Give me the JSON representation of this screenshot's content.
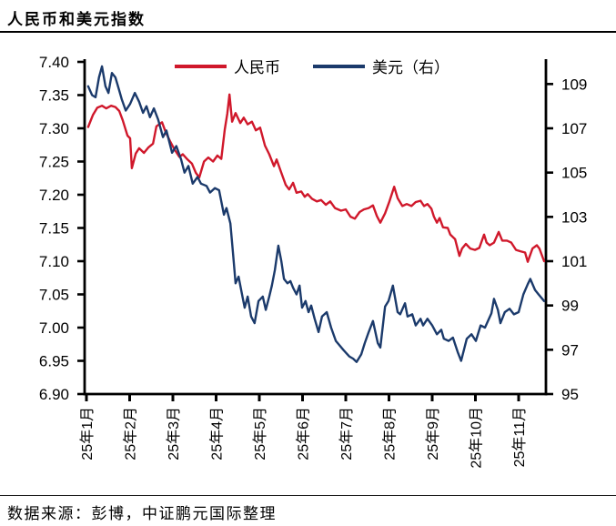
{
  "header": {
    "title": "人民币和美元指数"
  },
  "footer": {
    "source": "数据来源：彭博，中证鹏元国际整理"
  },
  "colors": {
    "cny_line": "#D0182B",
    "usd_line": "#1B3A6B",
    "axis": "#000000",
    "text": "#000000"
  },
  "chart_data": {
    "type": "line",
    "title": "人民币和美元指数",
    "legend_position": "top",
    "grid": false,
    "x_axis": {
      "unit": "months since 2025-01",
      "tick_labels": [
        "25年1月",
        "25年2月",
        "25年3月",
        "25年4月",
        "25年5月",
        "25年6月",
        "25年7月",
        "25年8月",
        "25年9月",
        "25年10月",
        "25年11月"
      ]
    },
    "y_left": {
      "min": 6.9,
      "max": 7.4,
      "step": 0.05,
      "ticks": [
        6.9,
        6.95,
        7.0,
        7.05,
        7.1,
        7.15,
        7.2,
        7.25,
        7.3,
        7.35,
        7.4
      ]
    },
    "y_right": {
      "min": 95,
      "max": 110,
      "step": 2,
      "ticks": [
        95,
        97,
        99,
        101,
        103,
        105,
        107,
        109
      ]
    },
    "series": [
      {
        "name": "人民币",
        "axis": "left",
        "color": "#D0182B",
        "points": [
          [
            0.04,
            7.302
          ],
          [
            0.15,
            7.32
          ],
          [
            0.25,
            7.331
          ],
          [
            0.36,
            7.334
          ],
          [
            0.46,
            7.33
          ],
          [
            0.57,
            7.334
          ],
          [
            0.67,
            7.332
          ],
          [
            0.76,
            7.326
          ],
          [
            0.84,
            7.312
          ],
          [
            0.95,
            7.289
          ],
          [
            1.01,
            7.285
          ],
          [
            1.05,
            7.24
          ],
          [
            1.14,
            7.262
          ],
          [
            1.22,
            7.27
          ],
          [
            1.33,
            7.263
          ],
          [
            1.43,
            7.271
          ],
          [
            1.54,
            7.277
          ],
          [
            1.62,
            7.303
          ],
          [
            1.75,
            7.309
          ],
          [
            1.83,
            7.295
          ],
          [
            1.94,
            7.28
          ],
          [
            2.04,
            7.268
          ],
          [
            2.15,
            7.257
          ],
          [
            2.23,
            7.261
          ],
          [
            2.34,
            7.253
          ],
          [
            2.44,
            7.247
          ],
          [
            2.53,
            7.233
          ],
          [
            2.61,
            7.226
          ],
          [
            2.72,
            7.25
          ],
          [
            2.82,
            7.256
          ],
          [
            2.93,
            7.25
          ],
          [
            3.03,
            7.259
          ],
          [
            3.12,
            7.254
          ],
          [
            3.2,
            7.298
          ],
          [
            3.26,
            7.322
          ],
          [
            3.31,
            7.351
          ],
          [
            3.37,
            7.31
          ],
          [
            3.45,
            7.323
          ],
          [
            3.56,
            7.308
          ],
          [
            3.64,
            7.316
          ],
          [
            3.73,
            7.306
          ],
          [
            3.83,
            7.31
          ],
          [
            3.92,
            7.297
          ],
          [
            4.02,
            7.301
          ],
          [
            4.13,
            7.274
          ],
          [
            4.23,
            7.261
          ],
          [
            4.34,
            7.243
          ],
          [
            4.4,
            7.253
          ],
          [
            4.51,
            7.233
          ],
          [
            4.61,
            7.215
          ],
          [
            4.69,
            7.208
          ],
          [
            4.78,
            7.218
          ],
          [
            4.86,
            7.203
          ],
          [
            4.97,
            7.205
          ],
          [
            5.05,
            7.197
          ],
          [
            5.12,
            7.201
          ],
          [
            5.22,
            7.194
          ],
          [
            5.33,
            7.19
          ],
          [
            5.43,
            7.192
          ],
          [
            5.54,
            7.185
          ],
          [
            5.64,
            7.19
          ],
          [
            5.75,
            7.18
          ],
          [
            5.89,
            7.176
          ],
          [
            6.0,
            7.178
          ],
          [
            6.11,
            7.167
          ],
          [
            6.21,
            7.164
          ],
          [
            6.32,
            7.174
          ],
          [
            6.42,
            7.178
          ],
          [
            6.53,
            7.18
          ],
          [
            6.63,
            7.184
          ],
          [
            6.72,
            7.168
          ],
          [
            6.8,
            7.158
          ],
          [
            6.91,
            7.172
          ],
          [
            7.01,
            7.19
          ],
          [
            7.12,
            7.212
          ],
          [
            7.2,
            7.195
          ],
          [
            7.31,
            7.183
          ],
          [
            7.41,
            7.186
          ],
          [
            7.52,
            7.183
          ],
          [
            7.62,
            7.189
          ],
          [
            7.73,
            7.191
          ],
          [
            7.81,
            7.183
          ],
          [
            7.89,
            7.186
          ],
          [
            7.98,
            7.179
          ],
          [
            8.04,
            7.167
          ],
          [
            8.11,
            7.158
          ],
          [
            8.17,
            7.165
          ],
          [
            8.25,
            7.151
          ],
          [
            8.36,
            7.15
          ],
          [
            8.42,
            7.14
          ],
          [
            8.53,
            7.133
          ],
          [
            8.63,
            7.108
          ],
          [
            8.69,
            7.119
          ],
          [
            8.78,
            7.126
          ],
          [
            8.88,
            7.119
          ],
          [
            8.99,
            7.117
          ],
          [
            9.09,
            7.12
          ],
          [
            9.2,
            7.14
          ],
          [
            9.26,
            7.128
          ],
          [
            9.33,
            7.124
          ],
          [
            9.43,
            7.128
          ],
          [
            9.54,
            7.144
          ],
          [
            9.62,
            7.131
          ],
          [
            9.73,
            7.131
          ],
          [
            9.83,
            7.128
          ],
          [
            9.94,
            7.117
          ],
          [
            10.04,
            7.115
          ],
          [
            10.15,
            7.113
          ],
          [
            10.21,
            7.099
          ],
          [
            10.32,
            7.119
          ],
          [
            10.42,
            7.124
          ],
          [
            10.48,
            7.119
          ],
          [
            10.59,
            7.1
          ]
        ]
      },
      {
        "name": "美元（右）",
        "axis": "right",
        "color": "#1B3A6B",
        "points": [
          [
            0.04,
            108.9
          ],
          [
            0.13,
            108.5
          ],
          [
            0.21,
            108.4
          ],
          [
            0.29,
            109.3
          ],
          [
            0.36,
            109.8
          ],
          [
            0.44,
            108.9
          ],
          [
            0.51,
            108.6
          ],
          [
            0.59,
            109.5
          ],
          [
            0.67,
            109.3
          ],
          [
            0.76,
            108.7
          ],
          [
            0.82,
            108.3
          ],
          [
            0.91,
            107.8
          ],
          [
            1.01,
            108.1
          ],
          [
            1.12,
            108.6
          ],
          [
            1.22,
            108.2
          ],
          [
            1.31,
            107.7
          ],
          [
            1.39,
            108.0
          ],
          [
            1.47,
            107.5
          ],
          [
            1.56,
            107.9
          ],
          [
            1.66,
            107.4
          ],
          [
            1.77,
            106.6
          ],
          [
            1.85,
            106.9
          ],
          [
            1.98,
            105.9
          ],
          [
            2.08,
            106.2
          ],
          [
            2.19,
            105.6
          ],
          [
            2.27,
            105.0
          ],
          [
            2.36,
            105.3
          ],
          [
            2.46,
            104.5
          ],
          [
            2.57,
            104.8
          ],
          [
            2.65,
            104.5
          ],
          [
            2.78,
            104.4
          ],
          [
            2.86,
            104.1
          ],
          [
            2.97,
            104.3
          ],
          [
            3.07,
            104.2
          ],
          [
            3.18,
            103.1
          ],
          [
            3.24,
            103.4
          ],
          [
            3.33,
            102.7
          ],
          [
            3.39,
            101.4
          ],
          [
            3.45,
            100.0
          ],
          [
            3.52,
            100.3
          ],
          [
            3.6,
            99.5
          ],
          [
            3.66,
            98.9
          ],
          [
            3.73,
            99.4
          ],
          [
            3.81,
            98.5
          ],
          [
            3.89,
            98.2
          ],
          [
            3.98,
            99.2
          ],
          [
            4.08,
            99.4
          ],
          [
            4.15,
            98.8
          ],
          [
            4.23,
            99.4
          ],
          [
            4.29,
            99.9
          ],
          [
            4.36,
            100.6
          ],
          [
            4.44,
            101.7
          ],
          [
            4.51,
            101.0
          ],
          [
            4.57,
            100.2
          ],
          [
            4.65,
            100.0
          ],
          [
            4.72,
            100.1
          ],
          [
            4.78,
            99.8
          ],
          [
            4.86,
            99.5
          ],
          [
            4.93,
            99.9
          ],
          [
            4.99,
            98.9
          ],
          [
            5.07,
            99.2
          ],
          [
            5.14,
            98.7
          ],
          [
            5.2,
            99.0
          ],
          [
            5.28,
            98.4
          ],
          [
            5.37,
            97.8
          ],
          [
            5.45,
            98.5
          ],
          [
            5.56,
            98.7
          ],
          [
            5.66,
            98.0
          ],
          [
            5.77,
            97.4
          ],
          [
            5.94,
            97.0
          ],
          [
            6.08,
            96.7
          ],
          [
            6.17,
            96.6
          ],
          [
            6.25,
            96.45
          ],
          [
            6.36,
            96.8
          ],
          [
            6.44,
            97.3
          ],
          [
            6.53,
            97.8
          ],
          [
            6.63,
            98.3
          ],
          [
            6.74,
            97.3
          ],
          [
            6.8,
            97.1
          ],
          [
            6.91,
            98.95
          ],
          [
            6.99,
            99.2
          ],
          [
            7.09,
            99.9
          ],
          [
            7.2,
            98.7
          ],
          [
            7.26,
            98.6
          ],
          [
            7.37,
            99.1
          ],
          [
            7.43,
            98.5
          ],
          [
            7.54,
            98.6
          ],
          [
            7.62,
            98.1
          ],
          [
            7.73,
            98.4
          ],
          [
            7.79,
            98.1
          ],
          [
            7.89,
            98.4
          ],
          [
            8.0,
            98.1
          ],
          [
            8.11,
            97.7
          ],
          [
            8.21,
            97.9
          ],
          [
            8.27,
            97.5
          ],
          [
            8.38,
            97.4
          ],
          [
            8.48,
            97.55
          ],
          [
            8.59,
            96.9
          ],
          [
            8.67,
            96.5
          ],
          [
            8.8,
            97.5
          ],
          [
            8.91,
            97.7
          ],
          [
            9.01,
            97.4
          ],
          [
            9.12,
            98.1
          ],
          [
            9.22,
            98.0
          ],
          [
            9.37,
            98.65
          ],
          [
            9.43,
            99.3
          ],
          [
            9.52,
            98.8
          ],
          [
            9.58,
            98.2
          ],
          [
            9.68,
            98.7
          ],
          [
            9.79,
            98.85
          ],
          [
            9.89,
            98.6
          ],
          [
            10.0,
            98.7
          ],
          [
            10.11,
            99.5
          ],
          [
            10.21,
            99.96
          ],
          [
            10.27,
            100.2
          ],
          [
            10.38,
            99.7
          ],
          [
            10.46,
            99.5
          ],
          [
            10.59,
            99.2
          ]
        ]
      }
    ]
  }
}
